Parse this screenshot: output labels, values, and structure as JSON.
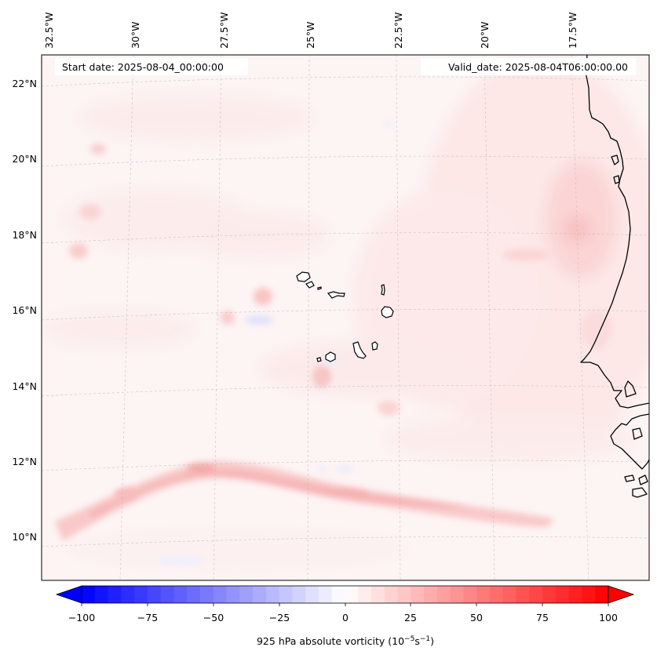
{
  "map": {
    "start_date_label": "Start date: 2025-08-04_00:00:00",
    "valid_date_label": "Valid_date: 2025-08-04T06:00:00.00",
    "longitude_labels": [
      "32.5°W",
      "30°W",
      "27.5°W",
      "25°W",
      "22.5°W",
      "20°W",
      "17.5°W"
    ],
    "latitude_labels": [
      "22°N",
      "20°N",
      "18°N",
      "16°N",
      "14°N",
      "12°N",
      "10°N"
    ],
    "feature_names": [
      "cape-verde-islands",
      "west-african-coastline"
    ]
  },
  "colorbar": {
    "ticks": [
      "−100",
      "−75",
      "−50",
      "−25",
      "0",
      "25",
      "50",
      "75",
      "100"
    ],
    "label": "925 hPa absolute vorticity (10",
    "label_exp1": "−5",
    "label_mid": "s",
    "label_exp2": "−1",
    "label_close": ")",
    "colormap": "bwr",
    "min": -100,
    "max": 100,
    "extend": "both",
    "low_color": "#0000ff",
    "mid_color": "#ffffff",
    "high_color": "#ff0000"
  }
}
